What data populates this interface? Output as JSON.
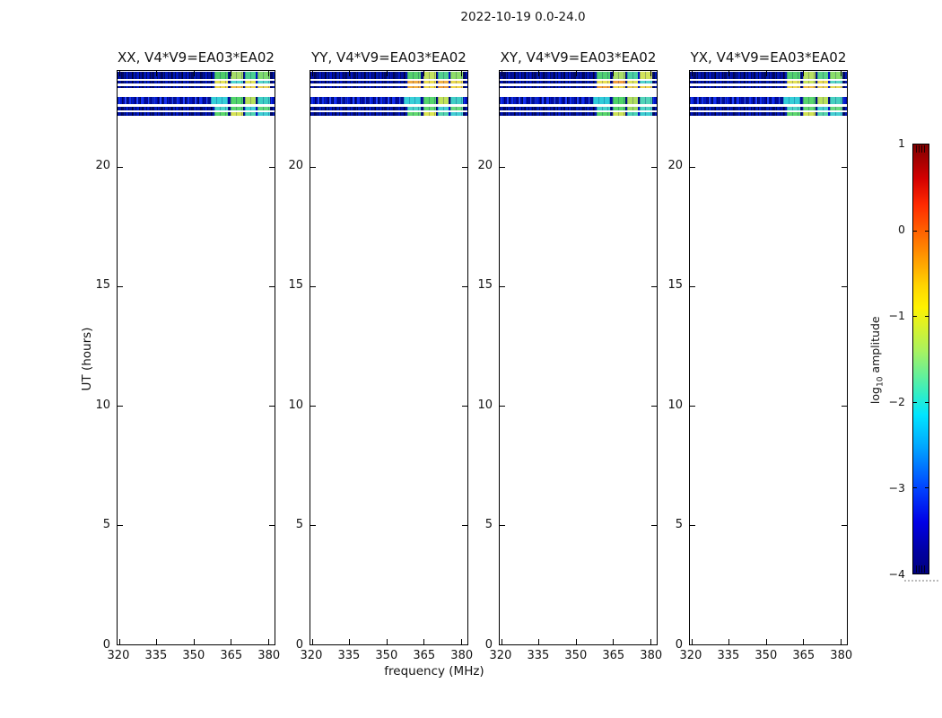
{
  "chart_data": {
    "type": "heatmap",
    "title": "2022-10-19 0.0-24.0",
    "xlabel": "frequency (MHz)",
    "ylabel": "UT (hours)",
    "x": {
      "min": 319.3,
      "max": 382.6,
      "ticks": [
        320,
        335,
        350,
        365,
        380
      ],
      "ticklabels": [
        "320",
        "335",
        "350",
        "365",
        "380"
      ]
    },
    "y": {
      "min": 0,
      "max": 24,
      "ticks": [
        0,
        5,
        10,
        15,
        20
      ],
      "ticklabels": [
        "0",
        "5",
        "10",
        "15",
        "20"
      ]
    },
    "colorbar": {
      "label_pre": "log",
      "label_sub": "10",
      "label_post": " amplitude",
      "min": -4,
      "max": 1,
      "colormap": "jet",
      "ticks": [
        1,
        0,
        -1,
        -2,
        -3,
        -4
      ],
      "ticklabels": [
        "1",
        "0",
        "−1",
        "−2",
        "−3",
        "−4"
      ]
    },
    "subplots": [
      {
        "key": "XX",
        "title": "XX, V4*V9=EA03*EA02"
      },
      {
        "key": "YY",
        "title": "YY, V4*V9=EA03*EA02"
      },
      {
        "key": "XY",
        "title": "XY, V4*V9=EA03*EA02"
      },
      {
        "key": "YX",
        "title": "YX, V4*V9=EA03*EA02"
      }
    ],
    "rfi_freqs_default": [
      [
        358.4,
        363.8
      ],
      [
        364.7,
        369.8
      ],
      [
        370.8,
        374.9
      ],
      [
        375.9,
        380.7
      ]
    ],
    "bands": [
      {
        "ut": [
          23.68,
          23.96
        ],
        "base": "dim",
        "colors": {
          "XX": [
            "#4ccb68",
            "#a6de69",
            "#49cf90",
            "#7eda6e"
          ],
          "YY": [
            "#54d06c",
            "#c2e35e",
            "#52d08e",
            "#8ede68"
          ],
          "XY": [
            "#4fcf72",
            "#aade66",
            "#4ad0a0",
            "#d2e45c"
          ],
          "YX": [
            "#52d06e",
            "#b8e060",
            "#5ad486",
            "#8ade6a"
          ]
        }
      },
      {
        "ut": [
          23.46,
          23.57
        ],
        "base": "dim",
        "colors": {
          "XX": [
            "#e6e356",
            "#4fd6d0",
            "#dfe356",
            "#54d4c8"
          ],
          "YY": [
            "#f0aa40",
            "#ecdc4e",
            "#f0b044",
            "#e8d84e"
          ],
          "XY": [
            "#e8df52",
            "#f09c3c",
            "#dce25a",
            "#50d2cc"
          ],
          "YX": [
            "#e2e054",
            "#c8e45c",
            "#e8da50",
            "#58d4c4"
          ]
        }
      },
      {
        "ut": [
          23.27,
          23.38
        ],
        "base": "dim",
        "colors": {
          "XX": [
            "#f0d94a",
            "#eec04a",
            "#ecd650",
            "#e6d252"
          ],
          "YY": [
            "#f2ae3c",
            "#f0d94a",
            "#ee9e38",
            "#f0d648"
          ],
          "XY": [
            "#f0a03c",
            "#eed84e",
            "#e8cc50",
            "#ecd44e"
          ],
          "YX": [
            "#eed84e",
            "#f0c246",
            "#ead052",
            "#e4da54"
          ]
        }
      },
      {
        "ut": [
          22.6,
          22.93
        ],
        "base": "bright",
        "freqs": [
          [
            356.8,
            363.8
          ],
          [
            364.7,
            369.8
          ],
          [
            370.8,
            374.9
          ],
          [
            375.9,
            380.7
          ]
        ],
        "colors": {
          "XX": [
            "#35cfd8",
            "#52d66a",
            "#b4e05a",
            "#3ecfc4"
          ],
          "YY": [
            "#38d0d8",
            "#55d66c",
            "#c0e258",
            "#40cfc6"
          ],
          "XY": [
            "#30ccda",
            "#4ed468",
            "#aede60",
            "#52d4b8"
          ],
          "YX": [
            "#34ced8",
            "#58d66e",
            "#b8e05c",
            "#46d0c0"
          ]
        }
      },
      {
        "ut": [
          22.37,
          22.5
        ],
        "base": "dim",
        "colors": {
          "XX": [
            "#47d2c8",
            "#5ad66e",
            "#43cfd0",
            "#61d87a"
          ],
          "YY": [
            "#4ad2c8",
            "#60d870",
            "#46cfd0",
            "#68da7e"
          ],
          "XY": [
            "#44d0ca",
            "#56d56c",
            "#9cdc62",
            "#4ed2c4"
          ],
          "YX": [
            "#4cd2c6",
            "#62d872",
            "#48d0ce",
            "#6ada80"
          ]
        }
      },
      {
        "ut": [
          22.12,
          22.27
        ],
        "base": "dim",
        "colors": {
          "XX": [
            "#5ad66a",
            "#d6e355",
            "#50d2b0",
            "#3fcdd2"
          ],
          "YY": [
            "#60d86e",
            "#dce651",
            "#54d4ae",
            "#42ced2"
          ],
          "XY": [
            "#56d468",
            "#cce257",
            "#4cd2b4",
            "#3ccccf"
          ],
          "YX": [
            "#5cd66c",
            "#d0e253",
            "#58d4aa",
            "#44ced0"
          ]
        }
      }
    ],
    "colors": {
      "band_dim_base": "#000a8c",
      "band_bright_base": "#0a1ed2",
      "axis": "#000000",
      "text": "#141414"
    }
  }
}
